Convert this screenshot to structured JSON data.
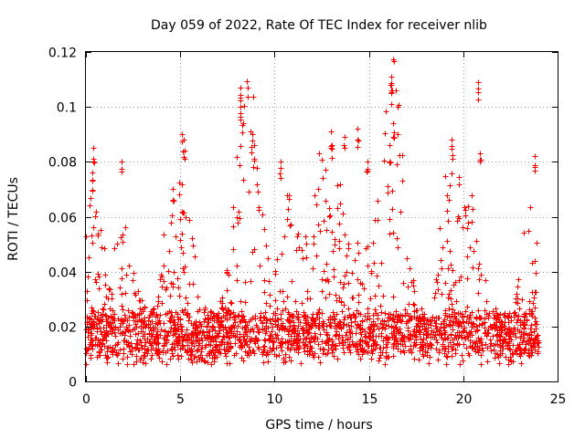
{
  "chart_data": {
    "type": "scatter",
    "marker": "plus",
    "title": "Day 059 of 2022, Rate Of TEC Index for receiver nlib",
    "xlabel": "GPS time / hours",
    "ylabel": "ROTI / TECUs",
    "xlim": [
      0,
      25
    ],
    "ylim": [
      0,
      0.12
    ],
    "xticks": [
      0,
      5,
      10,
      15,
      20,
      25
    ],
    "xtick_labels": [
      "0",
      "5",
      "10",
      "15",
      "20",
      "25"
    ],
    "yticks": [
      0,
      0.02,
      0.04,
      0.06,
      0.08,
      0.1,
      0.12
    ],
    "ytick_labels": [
      "0",
      "0.02",
      "0.04",
      "0.06",
      "0.08",
      "0.1",
      "0.12"
    ],
    "grid": true,
    "color": "#ff0000",
    "series": [
      {
        "name": "ROTI",
        "x_range": [
          0,
          24
        ],
        "typical_range": [
          0.01,
          0.025
        ],
        "peaks": [
          {
            "x": 0.4,
            "y": 0.085
          },
          {
            "x": 0.35,
            "y": 0.076
          },
          {
            "x": 1.9,
            "y": 0.08
          },
          {
            "x": 5.1,
            "y": 0.09
          },
          {
            "x": 5.2,
            "y": 0.088
          },
          {
            "x": 4.6,
            "y": 0.07
          },
          {
            "x": 8.2,
            "y": 0.107
          },
          {
            "x": 8.2,
            "y": 0.1
          },
          {
            "x": 8.8,
            "y": 0.09
          },
          {
            "x": 8.9,
            "y": 0.086
          },
          {
            "x": 10.3,
            "y": 0.08
          },
          {
            "x": 13.0,
            "y": 0.091
          },
          {
            "x": 13.7,
            "y": 0.089
          },
          {
            "x": 14.4,
            "y": 0.092
          },
          {
            "x": 14.9,
            "y": 0.08
          },
          {
            "x": 16.2,
            "y": 0.111
          },
          {
            "x": 16.2,
            "y": 0.108
          },
          {
            "x": 16.3,
            "y": 0.094
          },
          {
            "x": 16.1,
            "y": 0.086
          },
          {
            "x": 19.4,
            "y": 0.088
          },
          {
            "x": 20.8,
            "y": 0.109
          },
          {
            "x": 20.9,
            "y": 0.083
          },
          {
            "x": 23.8,
            "y": 0.082
          }
        ]
      }
    ]
  }
}
